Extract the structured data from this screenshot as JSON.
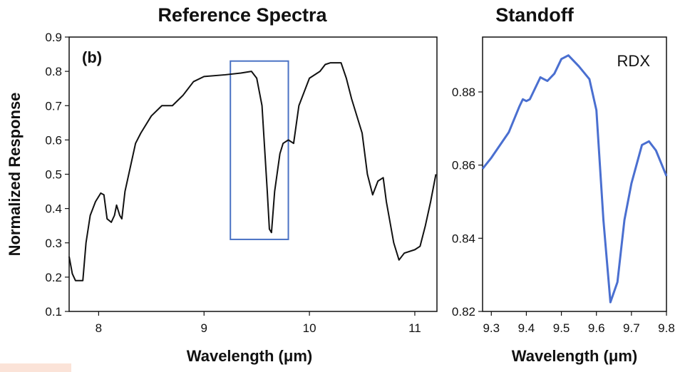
{
  "chart_data": [
    {
      "type": "line",
      "title": "Reference Spectra",
      "x_label": "Wavelength (μm)",
      "y_label": "Normalized Response",
      "annotation": "(b)",
      "x": [
        7.72,
        7.75,
        7.78,
        7.85,
        7.88,
        7.92,
        7.97,
        8.02,
        8.05,
        8.08,
        8.12,
        8.15,
        8.17,
        8.2,
        8.22,
        8.25,
        8.3,
        8.35,
        8.4,
        8.5,
        8.6,
        8.7,
        8.8,
        8.9,
        9.0,
        9.2,
        9.35,
        9.45,
        9.5,
        9.55,
        9.6,
        9.62,
        9.64,
        9.67,
        9.72,
        9.75,
        9.8,
        9.85,
        9.9,
        10.0,
        10.1,
        10.15,
        10.2,
        10.3,
        10.35,
        10.4,
        10.5,
        10.55,
        10.6,
        10.65,
        10.7,
        10.73,
        10.8,
        10.85,
        10.9,
        11.0,
        11.05,
        11.1,
        11.15,
        11.2
      ],
      "series": [
        {
          "color": "#111111",
          "values": [
            0.26,
            0.21,
            0.19,
            0.19,
            0.3,
            0.38,
            0.42,
            0.445,
            0.44,
            0.37,
            0.36,
            0.38,
            0.41,
            0.38,
            0.37,
            0.45,
            0.52,
            0.59,
            0.62,
            0.67,
            0.7,
            0.7,
            0.73,
            0.77,
            0.785,
            0.79,
            0.795,
            0.8,
            0.78,
            0.7,
            0.45,
            0.34,
            0.33,
            0.45,
            0.56,
            0.59,
            0.6,
            0.59,
            0.7,
            0.78,
            0.8,
            0.82,
            0.825,
            0.825,
            0.78,
            0.72,
            0.62,
            0.5,
            0.44,
            0.48,
            0.49,
            0.42,
            0.3,
            0.25,
            0.27,
            0.28,
            0.29,
            0.35,
            0.42,
            0.5
          ]
        }
      ],
      "xlim": [
        7.72,
        11.21
      ],
      "ylim": [
        0.1,
        0.9
      ],
      "xticks": [
        8,
        9,
        10,
        11
      ],
      "yticks": [
        0.1,
        0.2,
        0.3,
        0.4,
        0.5,
        0.6,
        0.7,
        0.8,
        0.9
      ],
      "highlight": {
        "x": [
          9.25,
          9.8
        ],
        "y": [
          0.31,
          0.83
        ],
        "color": "#4a72c4"
      }
    },
    {
      "type": "line",
      "title": "Standoff",
      "x_label": "Wavelength (μm)",
      "annotation": "RDX",
      "x": [
        9.275,
        9.3,
        9.35,
        9.38,
        9.39,
        9.4,
        9.41,
        9.44,
        9.46,
        9.48,
        9.5,
        9.52,
        9.55,
        9.58,
        9.6,
        9.62,
        9.64,
        9.66,
        9.68,
        9.7,
        9.73,
        9.75,
        9.77,
        9.8
      ],
      "series": [
        {
          "color": "#4a6fd0",
          "values": [
            0.859,
            0.862,
            0.869,
            0.876,
            0.878,
            0.8775,
            0.878,
            0.884,
            0.883,
            0.885,
            0.889,
            0.89,
            0.887,
            0.8835,
            0.875,
            0.845,
            0.8225,
            0.828,
            0.845,
            0.855,
            0.8655,
            0.8665,
            0.864,
            0.857
          ]
        }
      ],
      "xlim": [
        9.275,
        9.8
      ],
      "ylim": [
        0.82,
        0.895
      ],
      "xticks": [
        9.3,
        9.4,
        9.5,
        9.6,
        9.7,
        9.8
      ],
      "yticks": [
        0.82,
        0.84,
        0.86,
        0.88
      ]
    }
  ]
}
